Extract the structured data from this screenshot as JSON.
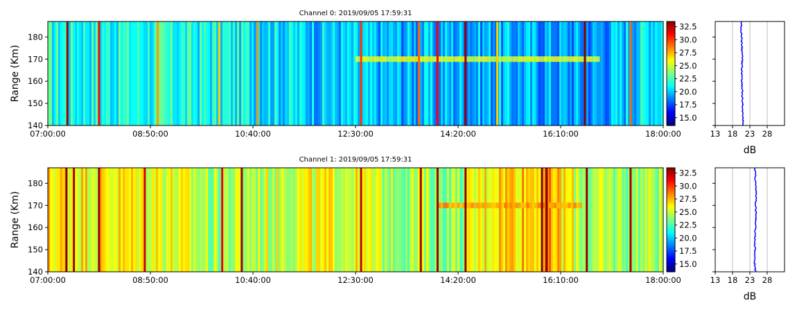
{
  "panels": [
    {
      "title": "Channel 0: 2019/09/05 17:59:31",
      "ylabel": "Range (Km)",
      "x_ticks": [
        "07:00:00",
        "08:50:00",
        "10:40:00",
        "12:30:00",
        "14:20:00",
        "16:10:00",
        "18:00:00"
      ],
      "y_ticks": [
        "140",
        "150",
        "160",
        "170",
        "180"
      ],
      "colorbar_ticks": [
        "15.0",
        "17.5",
        "20.0",
        "22.5",
        "25.0",
        "27.5",
        "30.0",
        "32.5"
      ],
      "profile_xlabel": "dB",
      "profile_ticks": [
        "13",
        "18",
        "23",
        "28"
      ]
    },
    {
      "title": "Channel 1: 2019/09/05 17:59:31",
      "ylabel": "Range (Km)",
      "x_ticks": [
        "07:00:00",
        "08:50:00",
        "10:40:00",
        "12:30:00",
        "14:20:00",
        "16:10:00",
        "18:00:00"
      ],
      "y_ticks": [
        "140",
        "150",
        "160",
        "170",
        "180"
      ],
      "colorbar_ticks": [
        "15.0",
        "17.5",
        "20.0",
        "22.5",
        "25.0",
        "27.5",
        "30.0",
        "32.5"
      ],
      "profile_xlabel": "dB",
      "profile_ticks": [
        "13",
        "18",
        "23",
        "28"
      ]
    }
  ],
  "chart_data": [
    {
      "type": "heatmap",
      "title": "Channel 0: 2019/09/05 17:59:31",
      "ylabel": "Range (Km)",
      "x_range": [
        "07:00:00",
        "18:00:00"
      ],
      "ylim": [
        140,
        187
      ],
      "colorbar": {
        "colormap": "jet",
        "range": [
          13.5,
          33.5
        ]
      },
      "baseline_db_by_hour": [
        {
          "t": "07:00",
          "db": 21.5
        },
        {
          "t": "09:00",
          "db": 21.5
        },
        {
          "t": "10:40",
          "db": 21.0
        },
        {
          "t": "12:00",
          "db": 20.0
        },
        {
          "t": "13:00",
          "db": 19.5
        },
        {
          "t": "15:00",
          "db": 19.5
        },
        {
          "t": "16:50",
          "db": 19.0
        },
        {
          "t": "18:00",
          "db": 21.5
        }
      ],
      "stripes": [
        {
          "t": "07:21",
          "db": 33.0
        },
        {
          "t": "07:55",
          "db": 31.0
        },
        {
          "t": "08:58",
          "db": 28.0
        },
        {
          "t": "10:04",
          "db": 27.0
        },
        {
          "t": "10:45",
          "db": 28.0
        },
        {
          "t": "12:36",
          "db": 30.0
        },
        {
          "t": "13:38",
          "db": 29.0
        },
        {
          "t": "13:58",
          "db": 31.0
        },
        {
          "t": "14:28",
          "db": 33.0
        },
        {
          "t": "15:02",
          "db": 27.0
        },
        {
          "t": "16:36",
          "db": 33.5
        },
        {
          "t": "17:25",
          "db": 29.0
        }
      ],
      "band": {
        "range_km": 170,
        "t_start": "12:30:00",
        "t_end": "16:50:00",
        "db": 25.5
      },
      "profile": {
        "xlabel": "dB",
        "xlim": [
          13,
          33
        ],
        "range_km": [
          140,
          145,
          150,
          155,
          160,
          165,
          170,
          175,
          180,
          187
        ],
        "db": [
          21.1,
          20.9,
          20.9,
          20.8,
          20.7,
          20.7,
          20.8,
          20.7,
          20.6,
          20.5
        ]
      }
    },
    {
      "type": "heatmap",
      "title": "Channel 1: 2019/09/05 17:59:31",
      "ylabel": "Range (Km)",
      "x_range": [
        "07:00:00",
        "18:00:00"
      ],
      "ylim": [
        140,
        187
      ],
      "colorbar": {
        "colormap": "jet",
        "range": [
          13.5,
          33.5
        ]
      },
      "baseline_db_by_hour": [
        {
          "t": "07:00",
          "db": 26.5
        },
        {
          "t": "09:00",
          "db": 26.0
        },
        {
          "t": "10:00",
          "db": 24.0
        },
        {
          "t": "11:30",
          "db": 25.5
        },
        {
          "t": "12:30",
          "db": 25.5
        },
        {
          "t": "13:00",
          "db": 24.5
        },
        {
          "t": "14:20",
          "db": 24.0
        },
        {
          "t": "15:00",
          "db": 27.0
        },
        {
          "t": "16:00",
          "db": 27.5
        },
        {
          "t": "16:40",
          "db": 24.0
        },
        {
          "t": "18:00",
          "db": 24.5
        }
      ],
      "stripes": [
        {
          "t": "07:20",
          "db": 33.5
        },
        {
          "t": "07:28",
          "db": 33.0
        },
        {
          "t": "07:55",
          "db": 33.0
        },
        {
          "t": "08:44",
          "db": 32.0
        },
        {
          "t": "10:07",
          "db": 31.0
        },
        {
          "t": "10:28",
          "db": 33.0
        },
        {
          "t": "12:36",
          "db": 32.0
        },
        {
          "t": "13:40",
          "db": 33.0
        },
        {
          "t": "13:58",
          "db": 33.0
        },
        {
          "t": "14:28",
          "db": 33.5
        },
        {
          "t": "15:50",
          "db": 33.5
        },
        {
          "t": "15:55",
          "db": 33.5
        },
        {
          "t": "16:38",
          "db": 33.0
        },
        {
          "t": "17:25",
          "db": 33.0
        }
      ],
      "band": {
        "range_km": 170,
        "t_start": "13:58:00",
        "t_end": "16:30:00",
        "db": 28.0
      },
      "profile": {
        "xlabel": "dB",
        "xlim": [
          13,
          33
        ],
        "range_km": [
          140,
          145,
          150,
          155,
          160,
          165,
          170,
          175,
          180,
          187
        ],
        "db": [
          24.6,
          24.3,
          24.5,
          24.4,
          24.6,
          24.8,
          24.7,
          24.8,
          24.6,
          24.5
        ]
      }
    }
  ]
}
